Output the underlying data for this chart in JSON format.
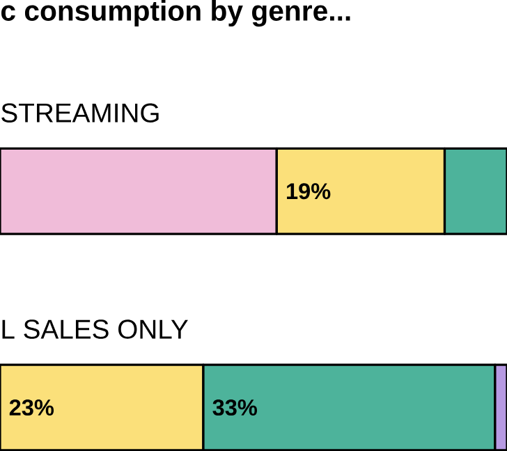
{
  "chart_data": {
    "type": "bar",
    "orientation": "horizontal",
    "stacked": true,
    "title": "c consumption by genre...",
    "categories": [
      "STREAMING",
      "L SALES ONLY"
    ],
    "series": [
      {
        "color": "#f0bcd9",
        "values": [
          31.3,
          null
        ]
      },
      {
        "color": "#fbe07a",
        "values": [
          19,
          23
        ],
        "value_labels": [
          "19%",
          "23%"
        ]
      },
      {
        "color": "#4db39b",
        "values": [
          7.05,
          33
        ],
        "value_labels": [
          null,
          "33%"
        ]
      },
      {
        "color": "#b79ae3",
        "values": [
          null,
          1.35
        ]
      }
    ]
  }
}
